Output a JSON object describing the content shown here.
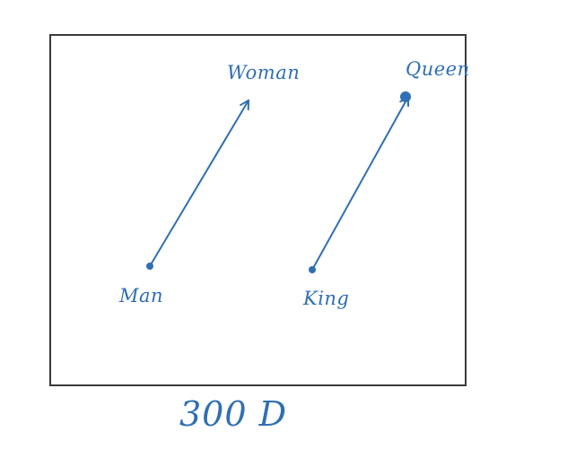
{
  "diagram": {
    "points": [
      {
        "id": "man",
        "label": "Man"
      },
      {
        "id": "woman",
        "label": "Woman"
      },
      {
        "id": "king",
        "label": "King"
      },
      {
        "id": "queen",
        "label": "Queen"
      }
    ],
    "arrows": [
      {
        "from": "man",
        "to": "woman"
      },
      {
        "from": "king",
        "to": "queen"
      }
    ],
    "caption": "300 D",
    "colors": {
      "ink": "#2f6fb3",
      "frame": "#3a3a3a",
      "background": "#ffffff"
    }
  }
}
